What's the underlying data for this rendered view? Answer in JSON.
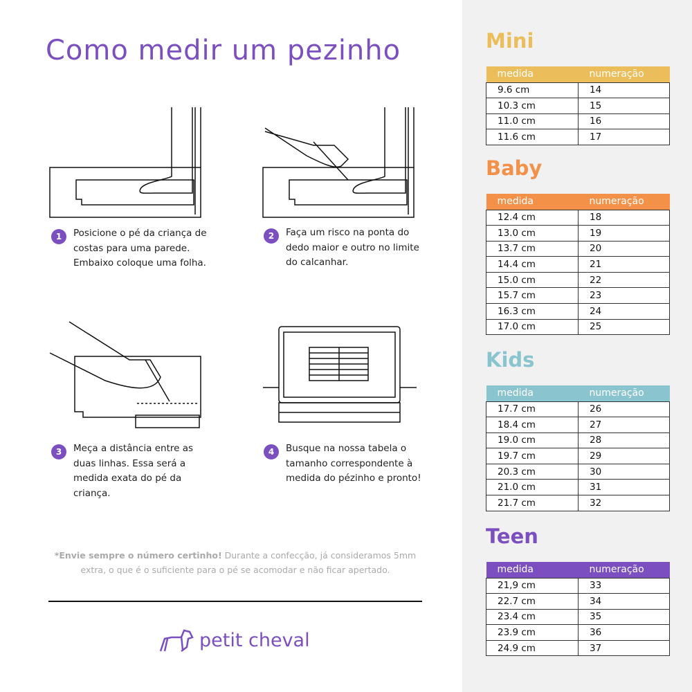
{
  "title": "Como medir um pezinho",
  "steps": [
    {
      "n": "1",
      "text": "Posicione o pé da criança de costas para uma parede. Embaixo coloque uma folha."
    },
    {
      "n": "2",
      "text": "Faça um risco na ponta do dedo maior e outro no limite do calcanhar."
    },
    {
      "n": "3",
      "text": "Meça a distância entre as duas linhas. Essa será a medida exata do pé da criança."
    },
    {
      "n": "4",
      "text": "Busque na nossa tabela o tamanho correspondente à medida do pézinho e pronto!"
    }
  ],
  "note": {
    "bold": "*Envie sempre o número certinho!",
    "text": " Durante a confecção, já consideramos 5mm extra, o que é o suficiente para o pé se acomodar e não ficar apertado."
  },
  "brand": "petit cheval",
  "colors": {
    "purple": "#7b4fc0",
    "mini": "#ebbd5b",
    "baby": "#f39148",
    "kids": "#8ac4cf",
    "teen": "#7b4fc0"
  },
  "tables": {
    "mini": {
      "title": "Mini",
      "headers": [
        "medida",
        "numeração"
      ],
      "rows": [
        [
          "9.6 cm",
          "14"
        ],
        [
          "10.3 cm",
          "15"
        ],
        [
          "11.0 cm",
          "16"
        ],
        [
          "11.6 cm",
          "17"
        ]
      ]
    },
    "baby": {
      "title": "Baby",
      "headers": [
        "medida",
        "numeração"
      ],
      "rows": [
        [
          "12.4 cm",
          "18"
        ],
        [
          "13.0 cm",
          "19"
        ],
        [
          "13.7 cm",
          "20"
        ],
        [
          "14.4 cm",
          "21"
        ],
        [
          "15.0 cm",
          "22"
        ],
        [
          "15.7 cm",
          "23"
        ],
        [
          "16.3 cm",
          "24"
        ],
        [
          "17.0 cm",
          "25"
        ]
      ]
    },
    "kids": {
      "title": "Kids",
      "headers": [
        "medida",
        "numeração"
      ],
      "rows": [
        [
          "17.7 cm",
          "26"
        ],
        [
          "18.4 cm",
          "27"
        ],
        [
          "19.0 cm",
          "28"
        ],
        [
          "19.7 cm",
          "29"
        ],
        [
          "20.3 cm",
          "30"
        ],
        [
          "21.0 cm",
          "31"
        ],
        [
          "21.7 cm",
          "32"
        ]
      ]
    },
    "teen": {
      "title": "Teen",
      "headers": [
        "medida",
        "numeração"
      ],
      "rows": [
        [
          "21,9 cm",
          "33"
        ],
        [
          "22.7 cm",
          "34"
        ],
        [
          "23.4 cm",
          "35"
        ],
        [
          "23.9 cm",
          "36"
        ],
        [
          "24.9 cm",
          "37"
        ]
      ]
    }
  }
}
